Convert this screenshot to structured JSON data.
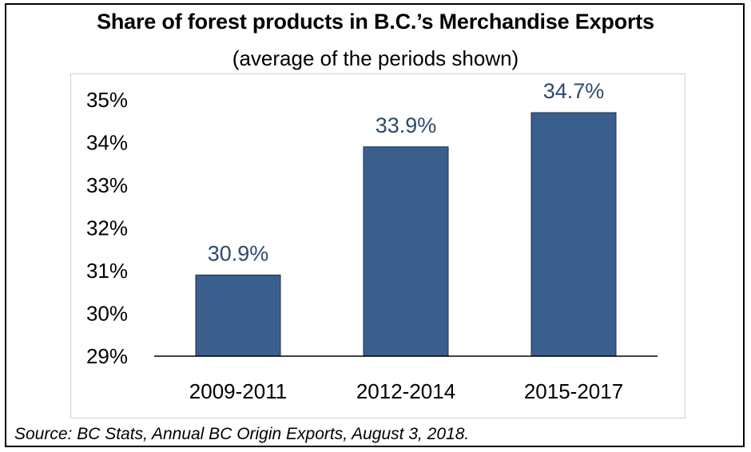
{
  "chart_data": {
    "type": "bar",
    "title": "Share of forest products in B.C.’s Merchandise Exports",
    "subtitle": "(average of the periods shown)",
    "categories": [
      "2009-2011",
      "2012-2014",
      "2015-2017"
    ],
    "values": [
      30.9,
      33.9,
      34.7
    ],
    "data_labels": [
      "30.9%",
      "33.9%",
      "34.7%"
    ],
    "ylim": [
      29,
      35
    ],
    "yticks": [
      29,
      30,
      31,
      32,
      33,
      34,
      35
    ],
    "ytick_labels": [
      "29%",
      "30%",
      "31%",
      "32%",
      "33%",
      "34%",
      "35%"
    ],
    "xlabel": "",
    "ylabel": "",
    "grid": false,
    "bar_color": "#3a5f8f",
    "label_color": "#2e4a6e"
  },
  "source": "Source:  BC Stats, Annual BC Origin Exports, August 3, 2018."
}
